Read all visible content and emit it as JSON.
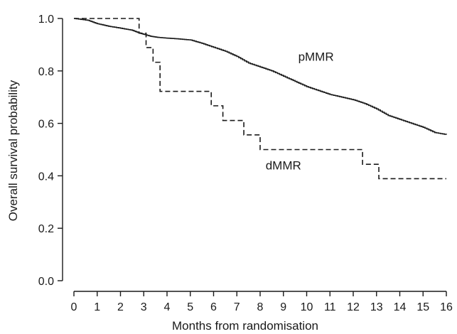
{
  "chart_data": {
    "type": "line",
    "title": "",
    "xlabel": "Months from randomisation",
    "ylabel": "Overall survival probability",
    "xlim": [
      0,
      16
    ],
    "ylim": [
      0,
      1
    ],
    "x_ticks": [
      "0",
      "1",
      "2",
      "3",
      "4",
      "5",
      "6",
      "7",
      "8",
      "9",
      "10",
      "11",
      "12",
      "13",
      "14",
      "15",
      "16"
    ],
    "y_ticks": [
      "0.0",
      "0.2",
      "0.4",
      "0.6",
      "0.8",
      "1.0"
    ],
    "grid": false,
    "legend": "none",
    "series": [
      {
        "name": "pMMR",
        "style": "solid",
        "color": "#1a1a1a",
        "label_at": [
          10.4,
          0.855
        ],
        "points": [
          [
            0,
            1.0
          ],
          [
            0.6,
            0.993
          ],
          [
            1.0,
            0.98
          ],
          [
            1.5,
            0.97
          ],
          [
            2.0,
            0.963
          ],
          [
            2.5,
            0.955
          ],
          [
            2.8,
            0.945
          ],
          [
            3.0,
            0.94
          ],
          [
            3.3,
            0.932
          ],
          [
            3.6,
            0.928
          ],
          [
            4.0,
            0.925
          ],
          [
            4.5,
            0.922
          ],
          [
            5.0,
            0.918
          ],
          [
            5.5,
            0.905
          ],
          [
            6.0,
            0.89
          ],
          [
            6.5,
            0.875
          ],
          [
            7.0,
            0.855
          ],
          [
            7.5,
            0.83
          ],
          [
            8.0,
            0.815
          ],
          [
            8.5,
            0.8
          ],
          [
            9.0,
            0.78
          ],
          [
            9.5,
            0.76
          ],
          [
            10.0,
            0.74
          ],
          [
            10.5,
            0.725
          ],
          [
            11.0,
            0.71
          ],
          [
            11.5,
            0.7
          ],
          [
            12.0,
            0.69
          ],
          [
            12.5,
            0.675
          ],
          [
            13.0,
            0.655
          ],
          [
            13.5,
            0.63
          ],
          [
            14.0,
            0.615
          ],
          [
            14.5,
            0.6
          ],
          [
            15.0,
            0.585
          ],
          [
            15.5,
            0.565
          ],
          [
            16.0,
            0.557
          ]
        ]
      },
      {
        "name": "dMMR",
        "style": "dashed",
        "color": "#1a1a1a",
        "label_at": [
          9.0,
          0.44
        ],
        "steps": [
          [
            0,
            1.0
          ],
          [
            2.8,
            0.944
          ],
          [
            3.1,
            0.889
          ],
          [
            3.4,
            0.833
          ],
          [
            3.7,
            0.722
          ],
          [
            5.9,
            0.667
          ],
          [
            6.4,
            0.611
          ],
          [
            7.3,
            0.556
          ],
          [
            8.0,
            0.5
          ],
          [
            12.4,
            0.444
          ],
          [
            13.1,
            0.389
          ],
          [
            16.0,
            0.389
          ]
        ]
      }
    ]
  }
}
